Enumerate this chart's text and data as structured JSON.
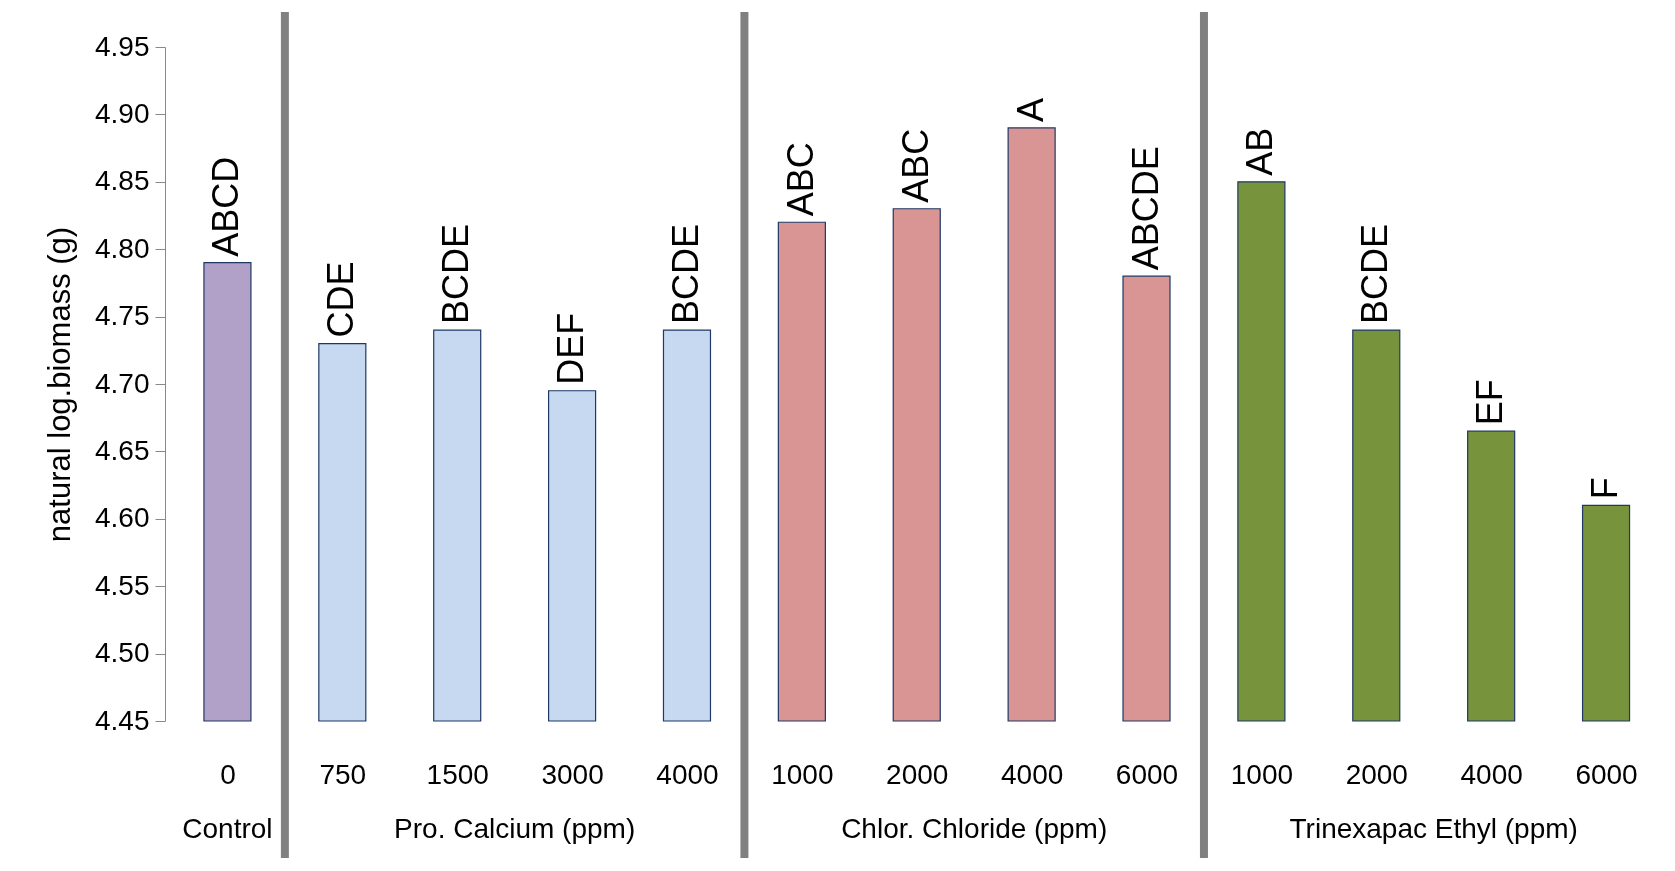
{
  "chart_data": {
    "type": "bar",
    "ylabel": "natural log.biomass (g)",
    "categories": [
      "0",
      "750",
      "1500",
      "3000",
      "4000",
      "1000",
      "2000",
      "4000",
      "6000",
      "1000",
      "2000",
      "4000",
      "6000"
    ],
    "values": [
      4.79,
      4.73,
      4.74,
      4.695,
      4.74,
      4.82,
      4.83,
      4.89,
      4.78,
      4.85,
      4.74,
      4.665,
      4.61
    ],
    "colors": [
      "#b1a0c7",
      "#c6d9f1",
      "#c6d9f1",
      "#c6d9f1",
      "#c6d9f1",
      "#d99594",
      "#d99594",
      "#d99594",
      "#d99594",
      "#77933c",
      "#77933c",
      "#77933c",
      "#77933c"
    ],
    "value_labels": [
      "ABCD",
      "CDE",
      "BCDE",
      "DEF",
      "BCDE",
      "ABC",
      "ABC",
      "A",
      "ABCDE",
      "AB",
      "BCDE",
      "EF",
      "F"
    ],
    "ylim": [
      4.45,
      4.95
    ],
    "yticks": [
      4.45,
      {
        "value": 4.5,
        "label": "4.50"
      },
      4.55,
      {
        "value": 4.6,
        "label": "4.60"
      },
      4.65,
      {
        "value": 4.7,
        "label": "4.70"
      },
      4.75,
      {
        "value": 4.8,
        "label": "4.80"
      },
      4.85,
      {
        "value": 4.9,
        "label": "4.90"
      },
      4.95
    ],
    "annotations": [
      "Control",
      "Pro. Calcium (ppm)",
      "Chlor. Chloride (ppm)",
      "Trinexapac Ethyl (ppm)"
    ]
  }
}
